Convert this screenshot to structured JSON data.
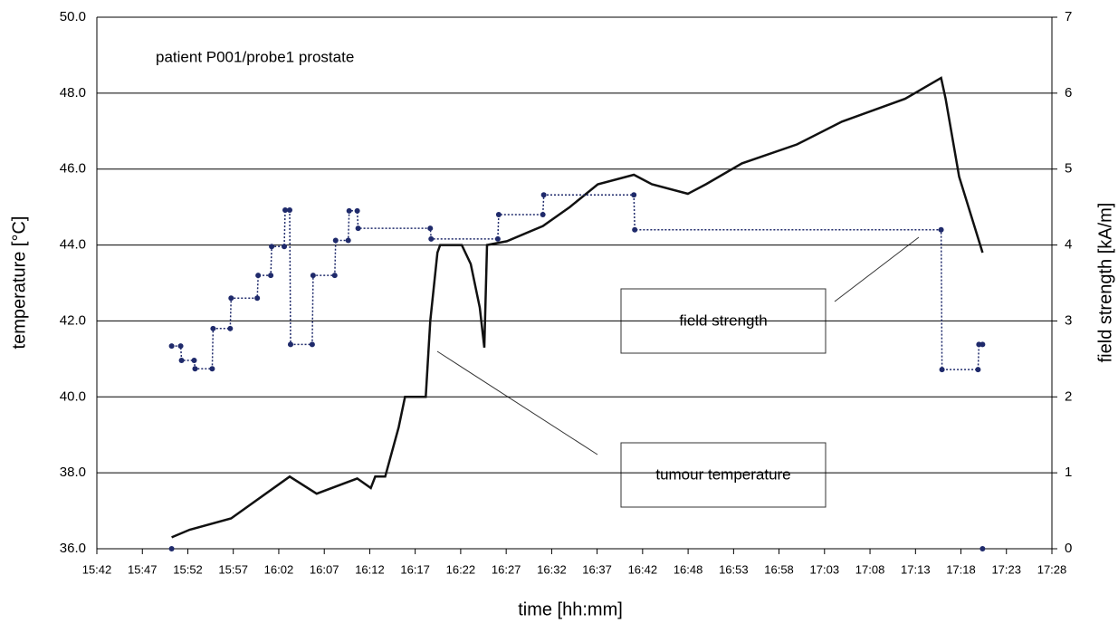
{
  "chart_data": {
    "type": "line",
    "annotations": [
      "patient P001/probe1 prostate"
    ],
    "xlabel": "time [hh:mm]",
    "ylabel": "temperature [°C]",
    "y2label": "field strength [kA/m]",
    "xlim": [
      942,
      1048
    ],
    "xticks": [
      {
        "value": 942,
        "label": "15:42"
      },
      {
        "value": 947.05,
        "label": "15:47"
      },
      {
        "value": 952.1,
        "label": "15:52"
      },
      {
        "value": 957.14,
        "label": "15:57"
      },
      {
        "value": 962.19,
        "label": "16:02"
      },
      {
        "value": 967.24,
        "label": "16:07"
      },
      {
        "value": 972.29,
        "label": "16:12"
      },
      {
        "value": 977.33,
        "label": "16:17"
      },
      {
        "value": 982.38,
        "label": "16:22"
      },
      {
        "value": 987.43,
        "label": "16:27"
      },
      {
        "value": 992.48,
        "label": "16:32"
      },
      {
        "value": 997.52,
        "label": "16:37"
      },
      {
        "value": 1002.57,
        "label": "16:42"
      },
      {
        "value": 1007.62,
        "label": "16:48"
      },
      {
        "value": 1012.67,
        "label": "16:53"
      },
      {
        "value": 1017.71,
        "label": "16:58"
      },
      {
        "value": 1022.76,
        "label": "17:03"
      },
      {
        "value": 1027.81,
        "label": "17:08"
      },
      {
        "value": 1032.86,
        "label": "17:13"
      },
      {
        "value": 1037.9,
        "label": "17:18"
      },
      {
        "value": 1042.95,
        "label": "17:23"
      },
      {
        "value": 1048,
        "label": "17:28"
      }
    ],
    "ylim": [
      36,
      50
    ],
    "yticks": [
      {
        "value": 36,
        "label": "36.0"
      },
      {
        "value": 38,
        "label": "38.0"
      },
      {
        "value": 40,
        "label": "40.0"
      },
      {
        "value": 42,
        "label": "42.0"
      },
      {
        "value": 44,
        "label": "44.0"
      },
      {
        "value": 46,
        "label": "46.0"
      },
      {
        "value": 48,
        "label": "48.0"
      },
      {
        "value": 50,
        "label": "50.0"
      }
    ],
    "y2lim": [
      0,
      7
    ],
    "y2ticks": [
      0,
      1,
      2,
      3,
      4,
      5,
      6,
      7
    ],
    "grid": true,
    "series": [
      {
        "name": "tumour temperature",
        "color": "#111111",
        "axis": "y",
        "x": [
          950.3,
          952.3,
          956.9,
          963.4,
          966.4,
          970.9,
          972.4,
          972.9,
          974.0,
          975.5,
          976.2,
          978.5,
          979.0,
          979.8,
          980.1,
          982.5,
          983.5,
          984.5,
          985.0,
          985.3,
          987.5,
          991.5,
          994.5,
          997.6,
          1001.6,
          1003.6,
          1007.6,
          1009.6,
          1013.6,
          1019.7,
          1024.7,
          1031.7,
          1035.7,
          1036.2,
          1037.7,
          1040.3
        ],
        "values": [
          36.3,
          36.5,
          36.8,
          37.9,
          37.45,
          37.85,
          37.6,
          37.9,
          37.9,
          39.2,
          40.0,
          40.0,
          42.0,
          43.8,
          44.0,
          44.0,
          43.5,
          42.35,
          41.3,
          44.0,
          44.1,
          44.5,
          45.0,
          45.6,
          45.85,
          45.6,
          45.35,
          45.6,
          46.15,
          46.65,
          47.25,
          47.85,
          48.4,
          47.85,
          45.8,
          43.8
        ]
      },
      {
        "name": "field strength",
        "color": "#1f2a6b",
        "axis": "y2",
        "x": [
          950.3,
          950.3,
          950.3,
          951.3,
          951.4,
          952.8,
          952.9,
          954.8,
          954.9,
          956.8,
          956.9,
          959.8,
          959.9,
          961.3,
          961.4,
          962.8,
          962.9,
          963.4,
          963.5,
          965.9,
          966.0,
          968.4,
          968.5,
          969.9,
          970.0,
          970.9,
          971.0,
          979.0,
          979.1,
          986.5,
          986.6,
          991.5,
          991.6,
          1001.6,
          1001.7,
          1035.7,
          1035.8,
          1039.8,
          1039.9,
          1040.3,
          1040.3,
          1040.3
        ],
        "values": [
          0,
          null,
          2.67,
          2.67,
          2.48,
          2.48,
          2.37,
          2.37,
          2.9,
          2.9,
          3.3,
          3.3,
          3.6,
          3.6,
          3.98,
          3.98,
          4.46,
          4.46,
          2.69,
          2.69,
          3.6,
          3.6,
          4.06,
          4.06,
          4.45,
          4.45,
          4.22,
          4.22,
          4.08,
          4.08,
          4.4,
          4.4,
          4.66,
          4.66,
          4.2,
          4.2,
          2.36,
          2.36,
          2.69,
          2.69,
          null,
          0
        ]
      }
    ]
  }
}
